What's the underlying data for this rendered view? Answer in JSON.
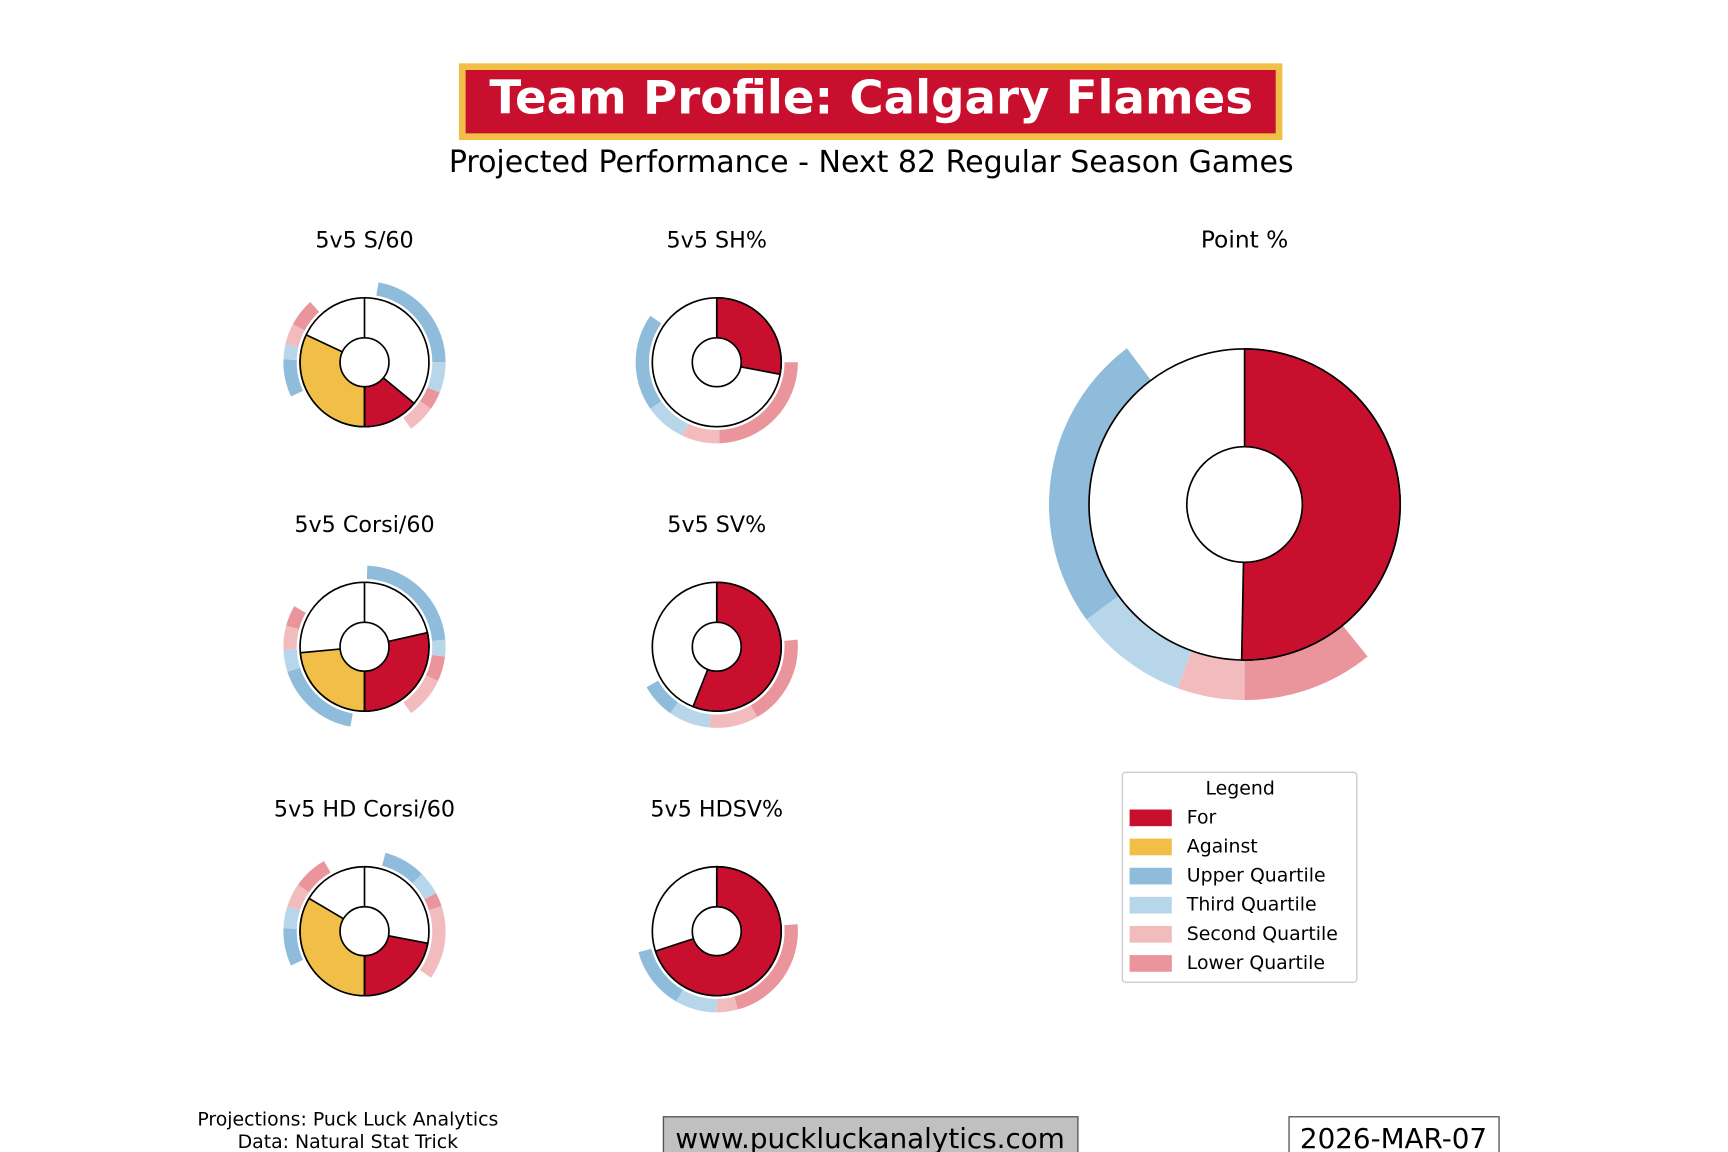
{
  "header": {
    "title": "Team Profile: Calgary Flames",
    "subtitle": "Projected Performance - Next 82 Regular Season Games"
  },
  "chart_data": [
    {
      "type": "split-donut",
      "title": "5v5 S/60",
      "for": 28,
      "against": 64,
      "ring": [
        {
          "q": 2,
          "start": 10,
          "end": 90
        },
        {
          "q": 3,
          "start": 90,
          "end": 112
        },
        {
          "q": 5,
          "start": 112,
          "end": 125
        },
        {
          "q": 4,
          "start": 125,
          "end": 145
        },
        {
          "q": 2,
          "start": 245,
          "end": 272
        },
        {
          "q": 3,
          "start": 272,
          "end": 283
        },
        {
          "q": 4,
          "start": 283,
          "end": 298
        },
        {
          "q": 5,
          "start": 298,
          "end": 318
        }
      ]
    },
    {
      "type": "donut",
      "title": "5v5 SH%",
      "for": 28,
      "ring": [
        {
          "q": 5,
          "start": 90,
          "end": 178
        },
        {
          "q": 4,
          "start": 178,
          "end": 205
        },
        {
          "q": 3,
          "start": 205,
          "end": 235
        },
        {
          "q": 2,
          "start": 235,
          "end": 305
        }
      ]
    },
    {
      "type": "split-donut",
      "title": "5v5 Corsi/60",
      "for": 57,
      "against": 47,
      "ring": [
        {
          "q": 2,
          "start": 2,
          "end": 85
        },
        {
          "q": 3,
          "start": 85,
          "end": 97
        },
        {
          "q": 5,
          "start": 97,
          "end": 115
        },
        {
          "q": 4,
          "start": 115,
          "end": 145
        },
        {
          "q": 2,
          "start": 190,
          "end": 252
        },
        {
          "q": 3,
          "start": 252,
          "end": 268
        },
        {
          "q": 4,
          "start": 268,
          "end": 285
        },
        {
          "q": 5,
          "start": 285,
          "end": 300
        }
      ]
    },
    {
      "type": "donut",
      "title": "5v5 SV%",
      "for": 56,
      "ring": [
        {
          "q": 5,
          "start": 85,
          "end": 150
        },
        {
          "q": 4,
          "start": 150,
          "end": 185
        },
        {
          "q": 3,
          "start": 185,
          "end": 215
        },
        {
          "q": 2,
          "start": 215,
          "end": 240
        }
      ]
    },
    {
      "type": "split-donut",
      "title": "5v5 HD Corsi/60",
      "for": 44,
      "against": 67,
      "ring": [
        {
          "q": 2,
          "start": 15,
          "end": 45
        },
        {
          "q": 3,
          "start": 45,
          "end": 62
        },
        {
          "q": 5,
          "start": 62,
          "end": 72
        },
        {
          "q": 4,
          "start": 72,
          "end": 125
        },
        {
          "q": 2,
          "start": 245,
          "end": 272
        },
        {
          "q": 3,
          "start": 272,
          "end": 288
        },
        {
          "q": 4,
          "start": 288,
          "end": 305
        },
        {
          "q": 5,
          "start": 305,
          "end": 330
        }
      ]
    },
    {
      "type": "donut",
      "title": "5v5 HDSV%",
      "for": 70,
      "ring": [
        {
          "q": 5,
          "start": 85,
          "end": 165
        },
        {
          "q": 4,
          "start": 165,
          "end": 180
        },
        {
          "q": 3,
          "start": 180,
          "end": 210
        },
        {
          "q": 2,
          "start": 210,
          "end": 255
        }
      ]
    },
    {
      "type": "donut",
      "title": "Point %",
      "for": 50.3,
      "ring": [
        {
          "q": 5,
          "start": 141,
          "end": 180
        },
        {
          "q": 4,
          "start": 180,
          "end": 200
        },
        {
          "q": 3,
          "start": 200,
          "end": 234
        },
        {
          "q": 2,
          "start": 234,
          "end": 323
        }
      ]
    }
  ],
  "legend": {
    "title": "Legend",
    "items": [
      {
        "name": "For",
        "color": "#c8102e"
      },
      {
        "name": "Against",
        "color": "#f1be48"
      },
      {
        "name": "Upper Quartile",
        "color": "#8fbcdb"
      },
      {
        "name": "Third Quartile",
        "color": "#b8d6ea"
      },
      {
        "name": "Second Quartile",
        "color": "#f2bcbe"
      },
      {
        "name": "Lower Quartile",
        "color": "#e9959b"
      }
    ]
  },
  "footer": {
    "credits": [
      "Projections: Puck Luck Analytics",
      "Data: Natural Stat Trick"
    ],
    "website": "www.puckluckanalytics.com",
    "date": "2026-MAR-07"
  }
}
